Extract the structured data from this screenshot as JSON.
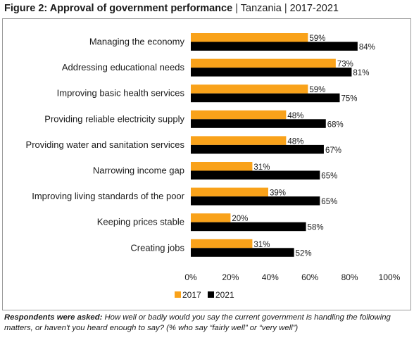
{
  "figure": {
    "title_bold": "Figure 2: Approval of government performance",
    "title_separator": "|",
    "title_country": "Tanzania",
    "title_years": "2017-2021"
  },
  "chart_data": {
    "type": "bar",
    "orientation": "horizontal",
    "categories": [
      "Managing  the economy",
      "Addressing educational needs",
      "Improving basic health services",
      "Providing reliable electricity supply",
      "Providing water and sanitation services",
      "Narrowing income gap",
      "Improving living standards of the poor",
      "Keeping prices stable",
      "Creating jobs"
    ],
    "series": [
      {
        "name": "2017",
        "color": "#f9a21a",
        "values": [
          59,
          73,
          59,
          48,
          48,
          31,
          39,
          20,
          31
        ]
      },
      {
        "name": "2021",
        "color": "#000000",
        "values": [
          84,
          81,
          75,
          68,
          67,
          65,
          65,
          58,
          52
        ]
      }
    ],
    "value_suffix": "%",
    "xlim": [
      0,
      100
    ],
    "xticks": [
      "0%",
      "20%",
      "40%",
      "60%",
      "80%",
      "100%"
    ],
    "grid": false,
    "legend_position": "bottom"
  },
  "footnote": {
    "label": "Respondents were asked:",
    "text": "How well or badly would you say the current government is handling the following matters, or haven't you heard enough to say? (% who say “fairly well” or “very well”)"
  }
}
